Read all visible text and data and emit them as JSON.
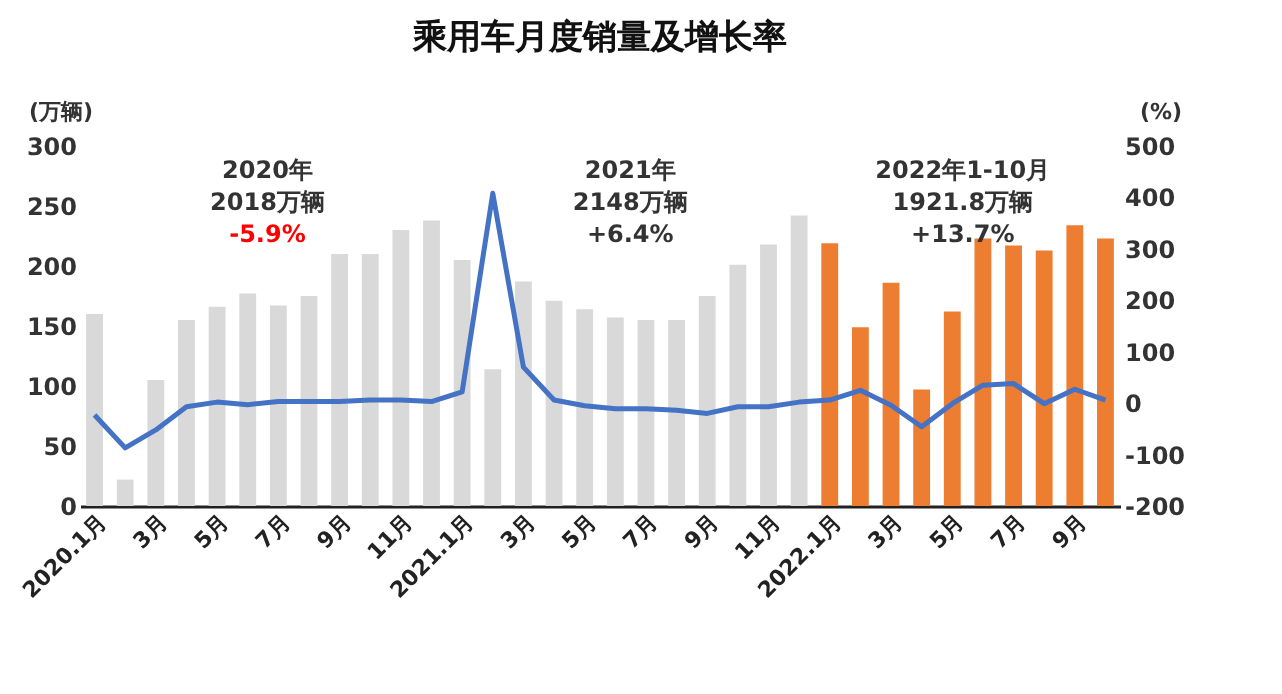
{
  "chart_data": {
    "type": "bar",
    "title": "乘用车月度销量及增长率",
    "ylabel": "(万辆)",
    "y2label": "(%)",
    "categories": [
      "2020.1月",
      null,
      "3月",
      null,
      "5月",
      null,
      "7月",
      null,
      "9月",
      null,
      "11月",
      null,
      "2021.1月",
      null,
      "3月",
      null,
      "5月",
      null,
      "7月",
      null,
      "9月",
      null,
      "11月",
      null,
      "2022.1月",
      null,
      "3月",
      null,
      "5月",
      null,
      "7月",
      null,
      "9月",
      null
    ],
    "series": [
      {
        "values": [
          160,
          22,
          105,
          155,
          166,
          177,
          167,
          175,
          210,
          210,
          230,
          238,
          205,
          114,
          187,
          171,
          164,
          157,
          155,
          155,
          175,
          201,
          218,
          242,
          219,
          149,
          186,
          97,
          162,
          223,
          217,
          213,
          234,
          223
        ],
        "colors": [
          "#d9d9d9",
          "#d9d9d9",
          "#d9d9d9",
          "#d9d9d9",
          "#d9d9d9",
          "#d9d9d9",
          "#d9d9d9",
          "#d9d9d9",
          "#d9d9d9",
          "#d9d9d9",
          "#d9d9d9",
          "#d9d9d9",
          "#d9d9d9",
          "#d9d9d9",
          "#d9d9d9",
          "#d9d9d9",
          "#d9d9d9",
          "#d9d9d9",
          "#d9d9d9",
          "#d9d9d9",
          "#d9d9d9",
          "#d9d9d9",
          "#d9d9d9",
          "#d9d9d9",
          "#ed7d31",
          "#ed7d31",
          "#ed7d31",
          "#ed7d31",
          "#ed7d31",
          "#ed7d31",
          "#ed7d31",
          "#ed7d31",
          "#ed7d31",
          "#ed7d31"
        ]
      },
      {
        "type": "line",
        "axis": "y2",
        "color": "#4472c4",
        "values": [
          -23,
          -87,
          -52,
          -7,
          2,
          -3,
          3,
          3,
          3,
          6,
          6,
          3,
          22,
          408,
          70,
          6,
          -5,
          -11,
          -11,
          -14,
          -20,
          -7,
          -7,
          2,
          6,
          25,
          -4,
          -46,
          -1,
          35,
          38,
          -1,
          27,
          6
        ]
      }
    ],
    "ylim": [
      0,
      300
    ],
    "yticks": [
      0,
      50,
      100,
      150,
      200,
      250,
      300
    ],
    "y2lim": [
      -200,
      500
    ],
    "y2ticks": [
      -200,
      -100,
      0,
      100,
      200,
      300,
      400,
      500
    ],
    "grid": false,
    "marker": "none",
    "line_style": "solid",
    "annotations": [
      "2020年\n2018万辆\n-5.9%",
      "2021年\n2148万辆\n+6.4%",
      "2022年1-10月\n1921.8万辆\n+13.7%"
    ]
  }
}
